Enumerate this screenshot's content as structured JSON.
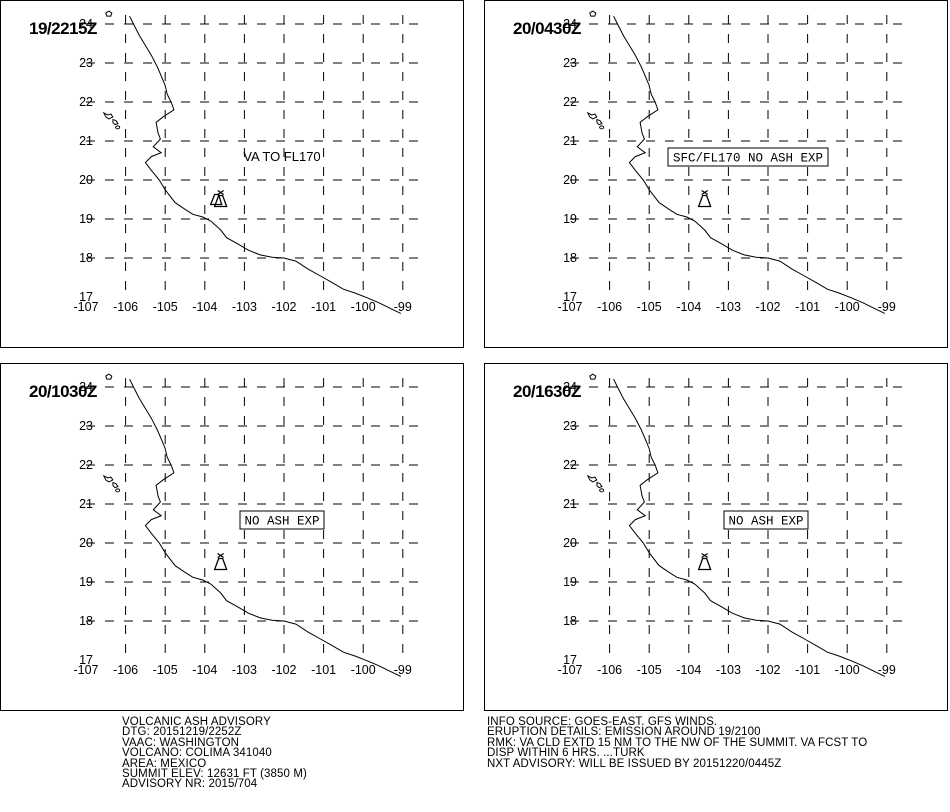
{
  "panels": [
    {
      "time": "19/2215Z",
      "annotation": "VA TO FL170",
      "boxed": false,
      "volcano_style": "double"
    },
    {
      "time": "20/0430Z",
      "annotation": "SFC/FL170 NO ASH EXP",
      "boxed": true,
      "volcano_style": "single"
    },
    {
      "time": "20/1030Z",
      "annotation": "NO ASH EXP",
      "boxed": true,
      "volcano_style": "single"
    },
    {
      "time": "20/1630Z",
      "annotation": "NO ASH EXP",
      "boxed": true,
      "volcano_style": "single"
    }
  ],
  "map": {
    "lon_ticks": [
      "-107",
      "-106",
      "-105",
      "-104",
      "-103",
      "-102",
      "-101",
      "-100",
      "-99"
    ],
    "lat_ticks": [
      "17",
      "18",
      "19",
      "20",
      "21",
      "22",
      "23",
      "24"
    ],
    "lon_range": [
      -107,
      -99
    ],
    "lat_range": [
      17,
      24
    ],
    "volcano": {
      "lon": -103.6,
      "lat": 19.5
    }
  },
  "footer_left": [
    "VOLCANIC ASH ADVISORY",
    "DTG: 20151219/2252Z",
    "VAAC: WASHINGTON",
    "VOLCANO: COLIMA 341040",
    "AREA: MEXICO",
    "SUMMIT ELEV: 12631 FT (3850 M)",
    "ADVISORY NR: 2015/704"
  ],
  "footer_right": [
    "INFO SOURCE: GOES-EAST. GFS WINDS.",
    "ERUPTION DETAILS: EMISSION AROUND 19/2100",
    "RMK: VA CLD EXTD 15 NM TO THE NW OF THE SUMMIT. VA FCST TO",
    "DISP WITHIN 6 HRS. ...TURK",
    "NXT ADVISORY: WILL BE ISSUED BY 20151220/0445Z"
  ]
}
